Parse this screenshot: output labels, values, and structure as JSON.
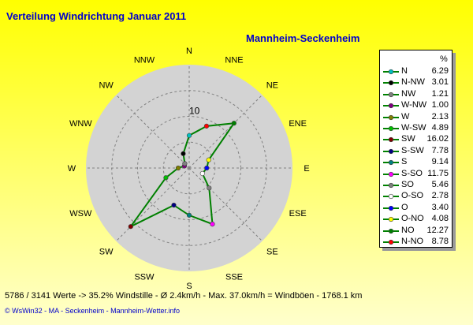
{
  "title": "Verteilung Windrichtung   Januar 2011",
  "station": "Mannheim-Seckenheim",
  "footer": "5786 / 3141 Werte  -> 35.2% Windstille   -   Ø 2.4km/h  -  Max. 37.0km/h = Windböen   -   1768.1 km",
  "credits": "© WsWin32  -  MA - Seckenheim  -  Mannheim-Wetter.info",
  "legend_unit": "%",
  "colors": {
    "background_top": "#ffff00",
    "background_bottom": "#ffffcc",
    "plot_disc": "#d3d3d3",
    "series_line": "#008000",
    "title_text": "#0000cc"
  },
  "chart_data": {
    "type": "polar-line",
    "radial_tick_label": "10",
    "radial_ticks": [
      5,
      10,
      15,
      20
    ],
    "rmax": 20,
    "grid": true,
    "legend_position": "right",
    "categories": [
      "N",
      "NNE",
      "NE",
      "ENE",
      "E",
      "ESE",
      "SE",
      "SSE",
      "S",
      "SSW",
      "SW",
      "WSW",
      "W",
      "WNW",
      "NW",
      "NNW"
    ],
    "series": [
      {
        "values": [
          6.29,
          8.78,
          12.27,
          4.08,
          3.4,
          2.78,
          5.46,
          11.75,
          9.14,
          7.78,
          16.02,
          4.89,
          2.13,
          1.0,
          1.21,
          3.01
        ]
      }
    ],
    "legend": [
      {
        "label": "N",
        "value": "6.29",
        "color": "#00c0c0"
      },
      {
        "label": "N-NW",
        "value": "3.01",
        "color": "#000000"
      },
      {
        "label": "NW",
        "value": "1.21",
        "color": "#808080"
      },
      {
        "label": "W-NW",
        "value": "1.00",
        "color": "#800080"
      },
      {
        "label": "W",
        "value": "2.13",
        "color": "#808000"
      },
      {
        "label": "W-SW",
        "value": "4.89",
        "color": "#00c000"
      },
      {
        "label": "SW",
        "value": "16.02",
        "color": "#800000"
      },
      {
        "label": "S-SW",
        "value": "7.78",
        "color": "#000080"
      },
      {
        "label": "S",
        "value": "9.14",
        "color": "#008080"
      },
      {
        "label": "S-SO",
        "value": "11.75",
        "color": "#ff00ff"
      },
      {
        "label": "SO",
        "value": "5.46",
        "color": "#808080"
      },
      {
        "label": "O-SO",
        "value": "2.78",
        "color": "#ffffff"
      },
      {
        "label": "O",
        "value": "3.40",
        "color": "#0000ff"
      },
      {
        "label": "O-NO",
        "value": "4.08",
        "color": "#ffff00"
      },
      {
        "label": "NO",
        "value": "12.27",
        "color": "#008000"
      },
      {
        "label": "N-NO",
        "value": "8.78",
        "color": "#ff0000"
      }
    ],
    "point_colors": [
      "#00c0c0",
      "#ff0000",
      "#008000",
      "#ffff00",
      "#0000ff",
      "#ffffff",
      "#808080",
      "#ff00ff",
      "#008080",
      "#000080",
      "#800000",
      "#00c000",
      "#808000",
      "#800080",
      "#808080",
      "#000000"
    ]
  }
}
